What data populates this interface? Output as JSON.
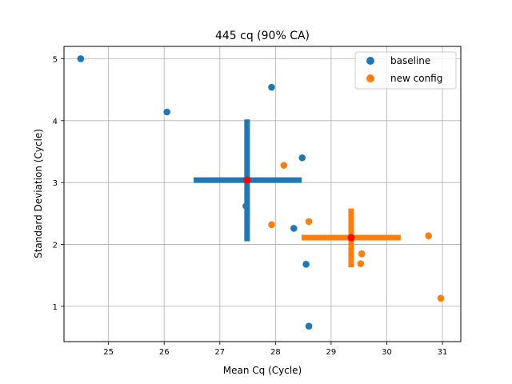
{
  "chart_data": {
    "type": "scatter",
    "title": "445 cq (90% CA)",
    "xlabel": "Mean Cq (Cycle)",
    "ylabel": "Standard Deviation (Cycle)",
    "xlim": [
      24.2,
      31.33
    ],
    "ylim": [
      0.43,
      5.2
    ],
    "xticks": [
      25,
      26,
      27,
      28,
      29,
      30,
      31
    ],
    "yticks": [
      1,
      2,
      3,
      4,
      5
    ],
    "grid": true,
    "legend_position": "top-right",
    "series": [
      {
        "name": "baseline",
        "color": "#1f77b4",
        "points": [
          {
            "x": 24.5,
            "y": 5.0
          },
          {
            "x": 26.05,
            "y": 4.14
          },
          {
            "x": 27.93,
            "y": 4.54
          },
          {
            "x": 28.48,
            "y": 3.4
          },
          {
            "x": 27.47,
            "y": 2.62
          },
          {
            "x": 28.33,
            "y": 2.26
          },
          {
            "x": 28.55,
            "y": 1.68
          },
          {
            "x": 28.6,
            "y": 0.68
          }
        ],
        "mean": {
          "x": 27.49,
          "y": 3.04
        },
        "error_x": [
          26.53,
          28.47
        ],
        "error_y": [
          2.05,
          4.02
        ]
      },
      {
        "name": "new config",
        "color": "#ff7f0e",
        "points": [
          {
            "x": 28.15,
            "y": 3.28
          },
          {
            "x": 28.6,
            "y": 2.37
          },
          {
            "x": 27.93,
            "y": 2.32
          },
          {
            "x": 29.55,
            "y": 1.85
          },
          {
            "x": 29.53,
            "y": 1.69
          },
          {
            "x": 30.75,
            "y": 2.14
          },
          {
            "x": 30.97,
            "y": 1.13
          }
        ],
        "mean": {
          "x": 29.36,
          "y": 2.11
        },
        "error_x": [
          28.47,
          30.25
        ],
        "error_y": [
          1.63,
          2.58
        ]
      }
    ],
    "mean_marker_color": "#ff0000"
  }
}
